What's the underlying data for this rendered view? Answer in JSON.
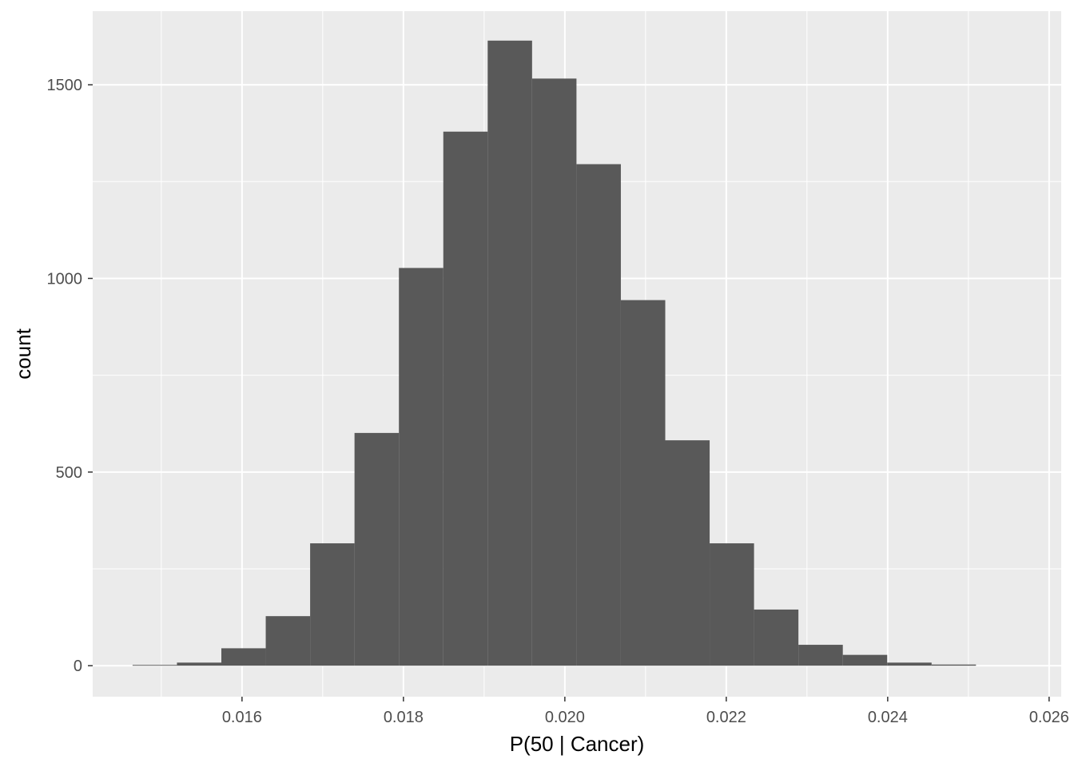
{
  "chart_data": {
    "type": "bar",
    "subtype": "histogram",
    "title": "",
    "xlabel": "P(50 | Cancer)",
    "ylabel": "count",
    "xlim": [
      0.01415,
      0.02615
    ],
    "ylim": [
      -80,
      1690
    ],
    "x_ticks": [
      0.016,
      0.018,
      0.02,
      0.022,
      0.024,
      0.026
    ],
    "x_tick_labels": [
      "0.016",
      "0.018",
      "0.020",
      "0.022",
      "0.024",
      "0.026"
    ],
    "y_ticks": [
      0,
      500,
      1000,
      1500
    ],
    "y_tick_labels": [
      "0",
      "500",
      "1000",
      "1500"
    ],
    "grid": true,
    "legend": "none",
    "colors": {
      "panel": "#ebebeb",
      "grid_major": "#ffffff",
      "bar": "#595959",
      "tick_text": "#4d4d4d",
      "tick_mark": "#333333"
    },
    "bins": [
      {
        "x0": 0.014644,
        "x1": 0.015194,
        "count": 2
      },
      {
        "x0": 0.015194,
        "x1": 0.015744,
        "count": 8
      },
      {
        "x0": 0.015744,
        "x1": 0.016294,
        "count": 45
      },
      {
        "x0": 0.016294,
        "x1": 0.016844,
        "count": 128
      },
      {
        "x0": 0.016844,
        "x1": 0.017394,
        "count": 316
      },
      {
        "x0": 0.017394,
        "x1": 0.017944,
        "count": 601
      },
      {
        "x0": 0.017944,
        "x1": 0.018494,
        "count": 1027
      },
      {
        "x0": 0.018494,
        "x1": 0.019044,
        "count": 1379
      },
      {
        "x0": 0.019044,
        "x1": 0.019594,
        "count": 1614
      },
      {
        "x0": 0.019594,
        "x1": 0.020144,
        "count": 1516
      },
      {
        "x0": 0.020144,
        "x1": 0.020694,
        "count": 1295
      },
      {
        "x0": 0.020694,
        "x1": 0.021244,
        "count": 944
      },
      {
        "x0": 0.021244,
        "x1": 0.021794,
        "count": 582
      },
      {
        "x0": 0.021794,
        "x1": 0.022344,
        "count": 316
      },
      {
        "x0": 0.022344,
        "x1": 0.022894,
        "count": 145
      },
      {
        "x0": 0.022894,
        "x1": 0.023444,
        "count": 54
      },
      {
        "x0": 0.023444,
        "x1": 0.023994,
        "count": 28
      },
      {
        "x0": 0.023994,
        "x1": 0.024544,
        "count": 8
      },
      {
        "x0": 0.024544,
        "x1": 0.025094,
        "count": 3
      }
    ]
  }
}
